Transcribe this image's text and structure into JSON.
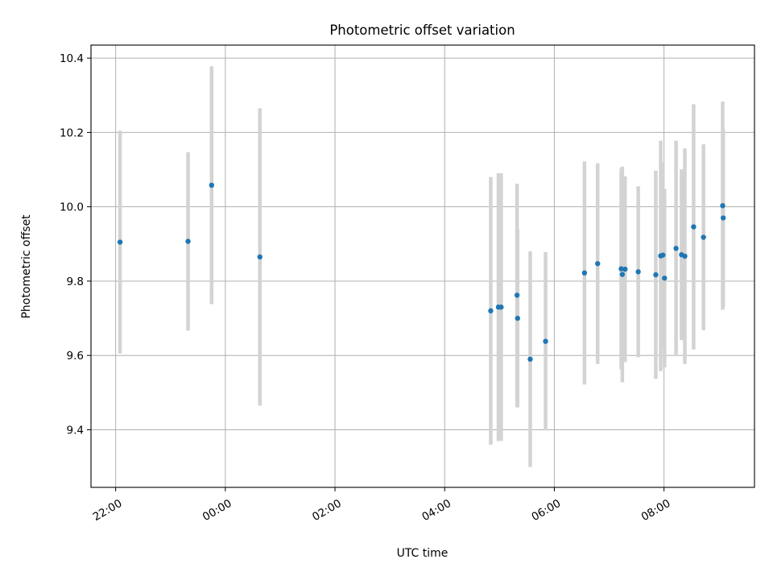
{
  "chart_data": {
    "type": "scatter",
    "title": "Photometric offset variation",
    "xlabel": "UTC time",
    "ylabel": "Photometric offset",
    "grid": true,
    "x_ticks": [
      "22:00",
      "00:00",
      "02:00",
      "04:00",
      "06:00",
      "08:00"
    ],
    "x_tick_hours": [
      -2,
      0,
      2,
      4,
      6,
      8
    ],
    "xlim_hours": [
      -2.45,
      9.65
    ],
    "y_ticks": [
      "9.4",
      "9.6",
      "9.8",
      "10.0",
      "10.2",
      "10.4"
    ],
    "y_tick_values": [
      9.4,
      9.6,
      9.8,
      10.0,
      10.2,
      10.4
    ],
    "ylim": [
      9.245,
      10.435
    ],
    "colors": {
      "point": "#1f77b4",
      "errorbar": "#d3d3d3",
      "grid": "#b0b0b0"
    },
    "points": [
      {
        "time": "22:05",
        "t": -1.92,
        "y": 9.905,
        "err": 0.3
      },
      {
        "time": "23:19",
        "t": -0.68,
        "y": 9.907,
        "err": 0.24
      },
      {
        "time": "23:45",
        "t": -0.25,
        "y": 10.058,
        "err": 0.32
      },
      {
        "time": "00:38",
        "t": 0.63,
        "y": 9.865,
        "err": 0.4
      },
      {
        "time": "04:50",
        "t": 4.84,
        "y": 9.72,
        "err": 0.36
      },
      {
        "time": "04:58",
        "t": 4.98,
        "y": 9.73,
        "err": 0.36
      },
      {
        "time": "05:01",
        "t": 5.03,
        "y": 9.73,
        "err": 0.36
      },
      {
        "time": "05:19",
        "t": 5.32,
        "y": 9.762,
        "err": 0.3
      },
      {
        "time": "05:20",
        "t": 5.33,
        "y": 9.7,
        "err": 0.24
      },
      {
        "time": "05:33",
        "t": 5.56,
        "y": 9.59,
        "err": 0.29
      },
      {
        "time": "05:50",
        "t": 5.84,
        "y": 9.638,
        "err": 0.24
      },
      {
        "time": "06:33",
        "t": 6.55,
        "y": 9.822,
        "err": 0.3
      },
      {
        "time": "06:47",
        "t": 6.79,
        "y": 9.847,
        "err": 0.27
      },
      {
        "time": "07:13",
        "t": 7.22,
        "y": 9.833,
        "err": 0.27
      },
      {
        "time": "07:14",
        "t": 7.24,
        "y": 9.818,
        "err": 0.29
      },
      {
        "time": "07:17",
        "t": 7.29,
        "y": 9.832,
        "err": 0.25
      },
      {
        "time": "07:32",
        "t": 7.53,
        "y": 9.825,
        "err": 0.23
      },
      {
        "time": "07:51",
        "t": 7.85,
        "y": 9.817,
        "err": 0.28
      },
      {
        "time": "07:56",
        "t": 7.94,
        "y": 9.868,
        "err": 0.31
      },
      {
        "time": "07:59",
        "t": 7.98,
        "y": 9.87,
        "err": 0.25
      },
      {
        "time": "08:01",
        "t": 8.01,
        "y": 9.808,
        "err": 0.24
      },
      {
        "time": "08:13",
        "t": 8.22,
        "y": 9.888,
        "err": 0.29
      },
      {
        "time": "08:19",
        "t": 8.32,
        "y": 9.871,
        "err": 0.23
      },
      {
        "time": "08:23",
        "t": 8.38,
        "y": 9.867,
        "err": 0.29
      },
      {
        "time": "08:32",
        "t": 8.54,
        "y": 9.946,
        "err": 0.33
      },
      {
        "time": "08:43",
        "t": 8.72,
        "y": 9.918,
        "err": 0.25
      },
      {
        "time": "09:04",
        "t": 9.07,
        "y": 10.003,
        "err": 0.28
      },
      {
        "time": "09:05",
        "t": 9.08,
        "y": 9.97,
        "err": 0.24
      }
    ]
  }
}
